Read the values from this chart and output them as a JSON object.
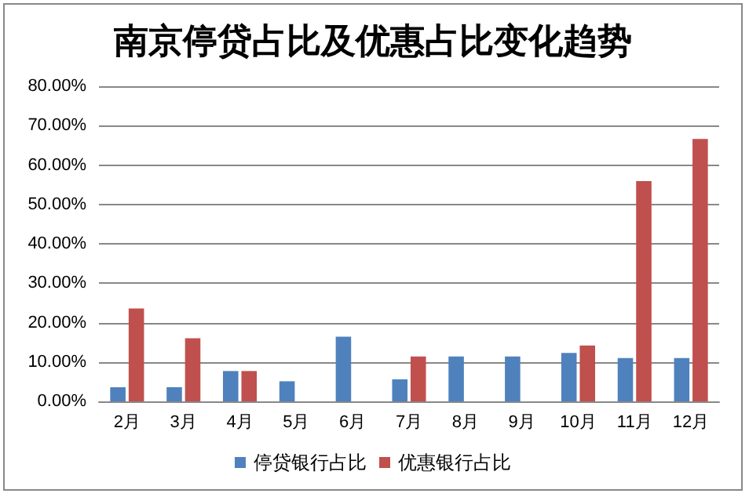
{
  "chart_data": {
    "type": "bar",
    "title": "南京停贷占比及优惠占比变化趋势",
    "categories": [
      "2月",
      "3月",
      "4月",
      "5月",
      "6月",
      "7月",
      "8月",
      "9月",
      "10月",
      "11月",
      "12月"
    ],
    "series": [
      {
        "name": "停贷银行占比",
        "color": "#4f81bd",
        "values": [
          3.6,
          3.6,
          7.7,
          5.1,
          16.4,
          5.6,
          11.4,
          11.4,
          12.3,
          11.0,
          11.0
        ]
      },
      {
        "name": "优惠银行占比",
        "color": "#c0504d",
        "values": [
          23.6,
          16.0,
          7.7,
          null,
          null,
          11.4,
          null,
          null,
          14.2,
          55.9,
          66.6
        ]
      }
    ],
    "ylim": [
      0,
      80
    ],
    "yticks": [
      {
        "value": 0,
        "label": "0.00%"
      },
      {
        "value": 10,
        "label": "10.00%"
      },
      {
        "value": 20,
        "label": "20.00%"
      },
      {
        "value": 30,
        "label": "30.00%"
      },
      {
        "value": 40,
        "label": "40.00%"
      },
      {
        "value": 50,
        "label": "50.00%"
      },
      {
        "value": 60,
        "label": "60.00%"
      },
      {
        "value": 70,
        "label": "70.00%"
      },
      {
        "value": 80,
        "label": "80.00%"
      }
    ],
    "grid": "y",
    "legend": "bottom"
  }
}
